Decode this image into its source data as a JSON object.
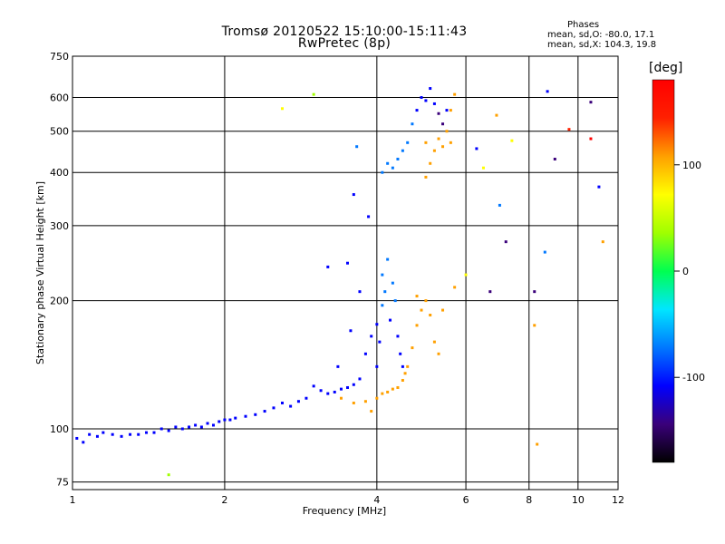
{
  "chart_data": {
    "type": "scatter",
    "title": "Tromsø 20120522 15:10:00-15:11:43",
    "subtitle": "RwPretec (8p)",
    "xlabel": "Frequency [MHz]",
    "ylabel": "Stationary phase Virtual Height [km]",
    "x_scale": "log",
    "y_scale": "log",
    "xlim": [
      1,
      12
    ],
    "ylim": [
      72,
      750
    ],
    "x_ticks": [
      "1",
      "2",
      "4",
      "6",
      "8",
      "10",
      "12"
    ],
    "y_ticks": [
      "75",
      "100",
      "200",
      "300",
      "400",
      "500",
      "600",
      "750"
    ],
    "grid": true,
    "phases": {
      "header": "Phases",
      "line1": "mean, sd,O: -80.0, 17.1",
      "line2": "mean, sd,X: 104.3, 19.8"
    },
    "colorbar": {
      "unit": "[deg]",
      "range": [
        -180,
        180
      ],
      "tick_labels": [
        "100",
        "0",
        "-100"
      ],
      "colormap": [
        "#000000",
        "#3a007a",
        "#0000ff",
        "#0078ff",
        "#00e6ff",
        "#00ff50",
        "#a0ff00",
        "#ffff00",
        "#ffa000",
        "#ff2000",
        "#ff0000"
      ]
    },
    "series": [
      {
        "name": "",
        "points": [
          [
            1.02,
            95,
            -100
          ],
          [
            1.05,
            93,
            -105
          ],
          [
            1.08,
            97,
            -98
          ],
          [
            1.12,
            96,
            -102
          ],
          [
            1.15,
            98,
            -110
          ],
          [
            1.2,
            97,
            -104
          ],
          [
            1.25,
            96,
            -100
          ],
          [
            1.3,
            97,
            -95
          ],
          [
            1.35,
            97,
            -108
          ],
          [
            1.4,
            98,
            -100
          ],
          [
            1.45,
            98,
            -102
          ],
          [
            1.5,
            100,
            -97
          ],
          [
            1.55,
            99,
            -105
          ],
          [
            1.6,
            101,
            -100
          ],
          [
            1.65,
            100,
            -103
          ],
          [
            1.7,
            101,
            -99
          ],
          [
            1.75,
            102,
            -104
          ],
          [
            1.8,
            101,
            -98
          ],
          [
            1.85,
            103,
            -101
          ],
          [
            1.9,
            102,
            -106
          ],
          [
            1.95,
            104,
            -100
          ],
          [
            2.0,
            105,
            -103
          ],
          [
            2.05,
            105,
            -97
          ],
          [
            2.1,
            106,
            -100
          ],
          [
            2.2,
            107,
            -96
          ],
          [
            2.3,
            108,
            -99
          ],
          [
            2.4,
            110,
            -95
          ],
          [
            2.5,
            112,
            -98
          ],
          [
            2.6,
            115,
            -94
          ],
          [
            2.7,
            113,
            -97
          ],
          [
            2.8,
            116,
            -92
          ],
          [
            2.9,
            118,
            -95
          ],
          [
            3.0,
            126,
            -100
          ],
          [
            3.1,
            123,
            -105
          ],
          [
            3.2,
            121,
            -110
          ],
          [
            3.3,
            122,
            -108
          ],
          [
            3.4,
            124,
            -100
          ],
          [
            3.5,
            125,
            -98
          ],
          [
            3.6,
            127,
            -105
          ],
          [
            3.7,
            131,
            -104
          ],
          [
            3.8,
            150,
            -108
          ],
          [
            3.9,
            165,
            -95
          ],
          [
            4.0,
            140,
            -100
          ],
          [
            4.0,
            176,
            -106
          ],
          [
            4.05,
            160,
            -98
          ],
          [
            4.1,
            195,
            -90
          ],
          [
            4.1,
            230,
            -85
          ],
          [
            4.15,
            210,
            -88
          ],
          [
            4.2,
            250,
            -84
          ],
          [
            4.25,
            180,
            -92
          ],
          [
            4.3,
            220,
            -86
          ],
          [
            4.35,
            200,
            -90
          ],
          [
            4.4,
            165,
            -95
          ],
          [
            4.45,
            150,
            -100
          ],
          [
            4.5,
            140,
            -96
          ],
          [
            4.1,
            400,
            -70
          ],
          [
            4.2,
            420,
            -75
          ],
          [
            4.3,
            410,
            -72
          ],
          [
            4.4,
            430,
            -65
          ],
          [
            4.5,
            450,
            -70
          ],
          [
            4.6,
            470,
            -80
          ],
          [
            4.7,
            520,
            -85
          ],
          [
            4.8,
            560,
            -95
          ],
          [
            4.9,
            600,
            -110
          ],
          [
            5.0,
            590,
            -120
          ],
          [
            5.1,
            630,
            -125
          ],
          [
            5.2,
            580,
            -115
          ],
          [
            5.3,
            550,
            -130
          ],
          [
            5.4,
            520,
            -135
          ],
          [
            5.5,
            560,
            -125
          ],
          [
            3.35,
            140,
            -110
          ],
          [
            3.55,
            170,
            -100
          ],
          [
            3.7,
            210,
            -95
          ],
          [
            3.5,
            245,
            -105
          ],
          [
            3.2,
            240,
            -110
          ],
          [
            3.6,
            355,
            -100
          ],
          [
            3.85,
            315,
            -120
          ],
          [
            3.65,
            460,
            -90
          ],
          [
            8.7,
            620,
            -120
          ],
          [
            8.6,
            260,
            -80
          ],
          [
            7.2,
            275,
            -130
          ],
          [
            7.0,
            335,
            -90
          ],
          [
            6.3,
            455,
            -125
          ],
          [
            9.0,
            430,
            -130
          ],
          [
            8.2,
            210,
            -140
          ],
          [
            6.7,
            210,
            -145
          ],
          [
            10.6,
            585,
            -130
          ],
          [
            11.0,
            370,
            -120
          ]
        ]
      },
      {
        "name": "",
        "points": [
          [
            3.4,
            118,
            110
          ],
          [
            3.6,
            115,
            115
          ],
          [
            3.8,
            116,
            112
          ],
          [
            4.0,
            118,
            118
          ],
          [
            4.1,
            121,
            120
          ],
          [
            4.2,
            122,
            115
          ],
          [
            4.3,
            124,
            118
          ],
          [
            4.4,
            125,
            122
          ],
          [
            4.5,
            130,
            120
          ],
          [
            4.55,
            135,
            118
          ],
          [
            4.6,
            140,
            125
          ],
          [
            4.7,
            155,
            120
          ],
          [
            4.8,
            175,
            118
          ],
          [
            4.9,
            190,
            115
          ],
          [
            5.0,
            200,
            112
          ],
          [
            5.1,
            185,
            120
          ],
          [
            5.2,
            160,
            118
          ],
          [
            5.3,
            150,
            125
          ],
          [
            5.4,
            190,
            116
          ],
          [
            4.8,
            205,
            115
          ],
          [
            5.0,
            390,
            100
          ],
          [
            5.1,
            420,
            95
          ],
          [
            5.2,
            450,
            100
          ],
          [
            5.3,
            480,
            105
          ],
          [
            5.4,
            460,
            110
          ],
          [
            5.5,
            500,
            100
          ],
          [
            5.6,
            560,
            95
          ],
          [
            5.7,
            610,
            100
          ],
          [
            5.6,
            470,
            110
          ],
          [
            5.0,
            470,
            105
          ],
          [
            2.6,
            565,
            60
          ],
          [
            3.0,
            610,
            30
          ],
          [
            6.5,
            410,
            55
          ],
          [
            7.4,
            475,
            60
          ],
          [
            6.9,
            545,
            95
          ],
          [
            9.6,
            505,
            150
          ],
          [
            10.6,
            480,
            170
          ],
          [
            8.2,
            175,
            110
          ],
          [
            8.3,
            92,
            95
          ],
          [
            6.0,
            230,
            80
          ],
          [
            11.2,
            275,
            95
          ],
          [
            1.55,
            78,
            20
          ],
          [
            3.9,
            110,
            120
          ],
          [
            5.7,
            215,
            110
          ]
        ]
      }
    ]
  }
}
